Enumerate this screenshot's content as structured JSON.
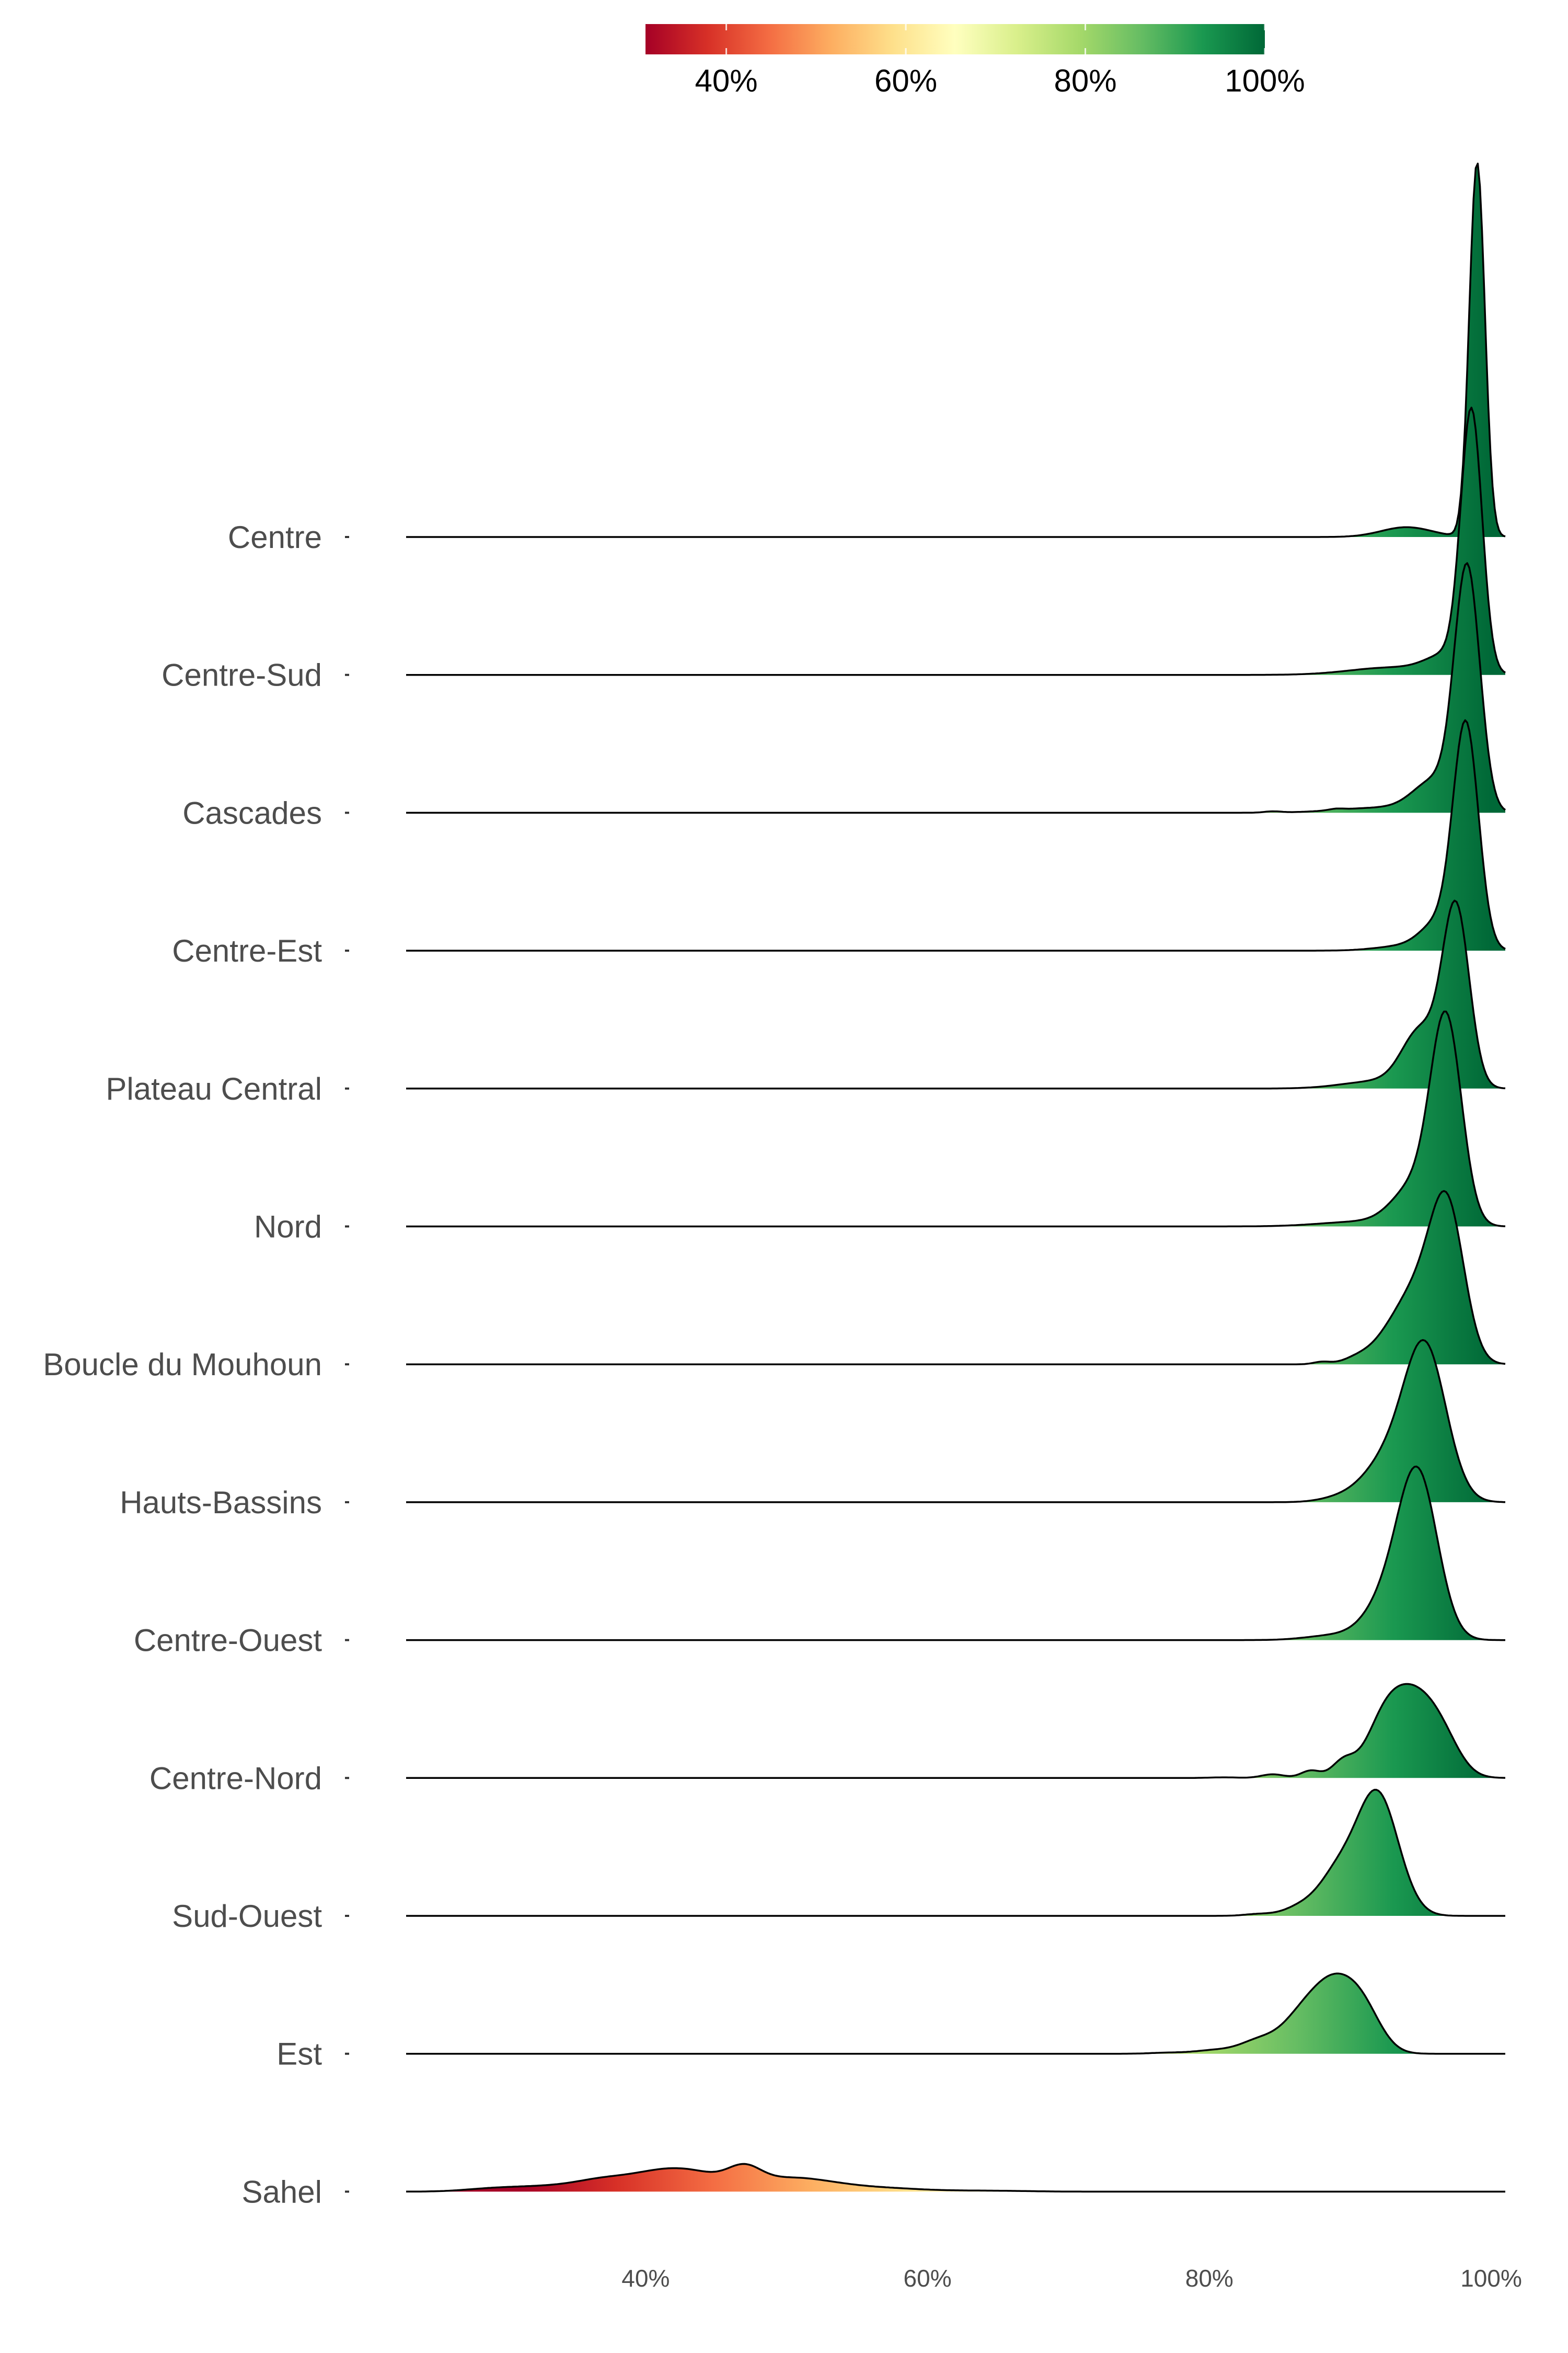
{
  "chart_data": {
    "type": "ridgeline",
    "title": "",
    "xlabel": "",
    "ylabel": "",
    "x_range": [
      23,
      101
    ],
    "x_ticks": [
      {
        "value": 40,
        "label": "40%"
      },
      {
        "value": 60,
        "label": "60%"
      },
      {
        "value": 80,
        "label": "80%"
      },
      {
        "value": 100,
        "label": "100%"
      }
    ],
    "grid": false,
    "colorbar": {
      "position": "top",
      "colors": [
        "#a50026",
        "#d73027",
        "#f46d43",
        "#fdae61",
        "#fee08b",
        "#ffffbf",
        "#d9ef8b",
        "#a6d96a",
        "#66bd63",
        "#1a9850",
        "#006837"
      ],
      "range": [
        31,
        100
      ],
      "ticks": [
        {
          "value": 40,
          "label": "40%"
        },
        {
          "value": 60,
          "label": "60%"
        },
        {
          "value": 80,
          "label": "80%"
        },
        {
          "value": 100,
          "label": "100%"
        }
      ]
    },
    "series": [
      {
        "name": "Centre",
        "peaks": [
          [
            99,
            0.55,
            3.05
          ]
        ],
        "tail": [
          [
            94,
            1.8,
            0.08
          ]
        ]
      },
      {
        "name": "Centre-Sud",
        "peaks": [
          [
            98.6,
            0.75,
            2.08
          ],
          [
            97,
            1.5,
            0.15
          ]
        ],
        "tail": [
          [
            93,
            3,
            0.06
          ]
        ]
      },
      {
        "name": "Cascades",
        "peaks": [
          [
            98.3,
            0.9,
            1.95
          ],
          [
            96,
            1.5,
            0.25
          ]
        ],
        "tail": [
          [
            84.5,
            0.6,
            0.01
          ],
          [
            89,
            0.5,
            0.01
          ],
          [
            92,
            3,
            0.04
          ]
        ]
      },
      {
        "name": "Centre-Est",
        "peaks": [
          [
            98.2,
            0.9,
            1.82
          ],
          [
            96.2,
            1.2,
            0.2
          ]
        ],
        "tail": [
          [
            94,
            2,
            0.04
          ]
        ]
      },
      {
        "name": "Plateau Central",
        "peaks": [
          [
            97.5,
            0.95,
            1.45
          ],
          [
            95,
            1.3,
            0.45
          ]
        ],
        "tail": [
          [
            92,
            2.5,
            0.06
          ]
        ]
      },
      {
        "name": "Nord",
        "peaks": [
          [
            96.8,
            1.1,
            1.65
          ],
          [
            94.5,
            1.5,
            0.3
          ]
        ],
        "tail": [
          [
            91,
            3,
            0.04
          ]
        ]
      },
      {
        "name": "Boucle du Mouhoun",
        "peaks": [
          [
            96.9,
            1.2,
            1.2
          ],
          [
            94.7,
            1.5,
            0.55
          ]
        ],
        "tail": [
          [
            92.5,
            1.2,
            0.12
          ],
          [
            88,
            0.6,
            0.02
          ],
          [
            90.5,
            1,
            0.05
          ]
        ]
      },
      {
        "name": "Hauts-Bassins",
        "peaks": [
          [
            95.3,
            1.5,
            1.25
          ],
          [
            92.5,
            1.6,
            0.3
          ]
        ],
        "tail": [
          [
            89.5,
            1.5,
            0.04
          ]
        ]
      },
      {
        "name": "Centre-Ouest",
        "peaks": [
          [
            94.8,
            1.4,
            1.32
          ],
          [
            92.5,
            1.5,
            0.28
          ]
        ],
        "tail": [
          [
            89,
            2,
            0.04
          ]
        ]
      },
      {
        "name": "Centre-Nord",
        "peaks": [
          [
            94.4,
            1.5,
            0.58
          ],
          [
            92.3,
            1.3,
            0.38
          ],
          [
            96.5,
            1.3,
            0.28
          ]
        ],
        "tail": [
          [
            89.5,
            0.8,
            0.13
          ],
          [
            87.2,
            0.7,
            0.06
          ],
          [
            84.5,
            0.8,
            0.03
          ],
          [
            81,
            1,
            0.005
          ]
        ]
      },
      {
        "name": "Sud-Ouest",
        "peaks": [
          [
            91.9,
            1.5,
            1.0
          ],
          [
            89,
            1.3,
            0.3
          ]
        ],
        "tail": [
          [
            86.5,
            1.2,
            0.07
          ],
          [
            83.5,
            1,
            0.015
          ]
        ]
      },
      {
        "name": "Est",
        "peaks": [
          [
            88.8,
            1.6,
            0.54
          ],
          [
            91,
            1.3,
            0.27
          ],
          [
            86.3,
            1.4,
            0.22
          ]
        ],
        "tail": [
          [
            83.5,
            1.3,
            0.1
          ],
          [
            80.5,
            1.5,
            0.03
          ],
          [
            77,
            1.2,
            0.008
          ]
        ]
      },
      {
        "name": "Sahel",
        "peaks": [
          [
            41,
            2.2,
            0.14
          ],
          [
            47,
            1.2,
            0.14
          ],
          [
            44,
            2,
            0.1
          ],
          [
            50,
            2.5,
            0.1
          ],
          [
            37,
            2,
            0.08
          ]
        ],
        "tail": [
          [
            33,
            2.5,
            0.04
          ],
          [
            29,
            2,
            0.02
          ],
          [
            54,
            2.5,
            0.04
          ],
          [
            58,
            2,
            0.015
          ],
          [
            62,
            2.5,
            0.008
          ],
          [
            66,
            2,
            0.004
          ]
        ]
      }
    ]
  }
}
